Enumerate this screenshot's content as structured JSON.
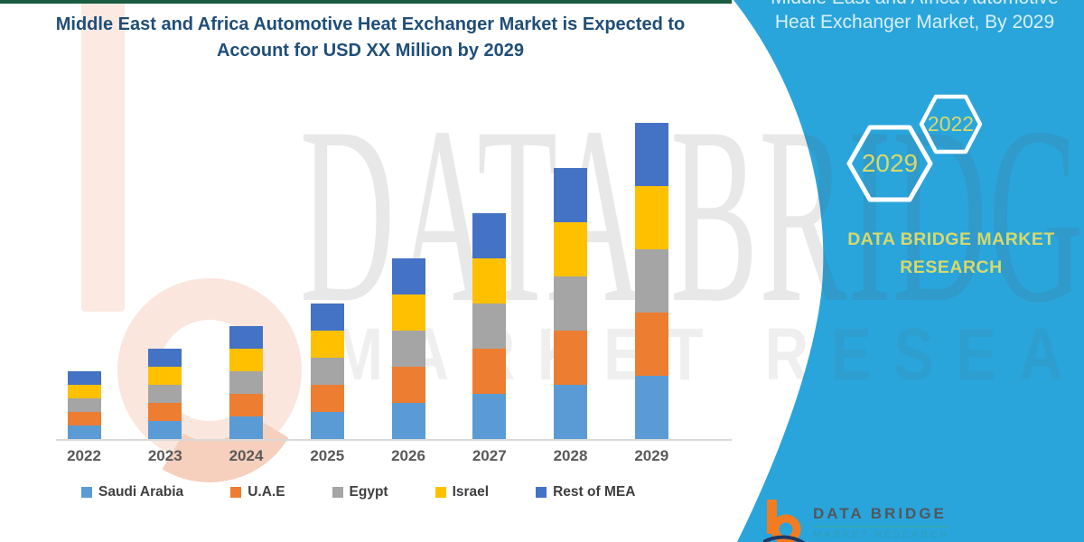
{
  "page": {
    "title": "Middle East and Africa Automotive Heat Exchanger Market is Expected to Account for USD XX Million by 2029"
  },
  "banner": {
    "heading_line1": "Middle East and Africa Automotive",
    "heading_line2": "Heat Exchanger Market, By 2029",
    "hexagon_labels": [
      "2029",
      "2022"
    ],
    "brand_line1": "DATA BRIDGE MARKET",
    "brand_line2": "RESEARCH",
    "background_color": "#29A5DC",
    "accent_yellow": "#D8D96A"
  },
  "footer_logo": {
    "name": "DATA BRIDGE",
    "subtitle": "MARKET RESEARCH"
  },
  "watermark": {
    "big_text": "DATA BRIDGE",
    "spaced_text": "MARKET RESEARCH"
  },
  "chart_data": {
    "type": "bar",
    "stacked": true,
    "title": "Middle East and Africa Automotive Heat Exchanger Market is Expected to Account for USD XX Million by 2029",
    "categories": [
      "2022",
      "2023",
      "2024",
      "2025",
      "2026",
      "2027",
      "2028",
      "2029"
    ],
    "series": [
      {
        "name": "Saudi Arabia",
        "color": "#5B9BD5",
        "values": [
          15,
          20,
          25,
          30,
          40,
          50,
          60,
          70
        ]
      },
      {
        "name": "U.A.E",
        "color": "#ED7D31",
        "values": [
          15,
          20,
          25,
          30,
          40,
          50,
          60,
          70
        ]
      },
      {
        "name": "Egypt",
        "color": "#A5A5A5",
        "values": [
          15,
          20,
          25,
          30,
          40,
          50,
          60,
          70
        ]
      },
      {
        "name": "Israel",
        "color": "#FFC000",
        "values": [
          15,
          20,
          25,
          30,
          40,
          50,
          60,
          70
        ]
      },
      {
        "name": "Rest of MEA",
        "color": "#4472C4",
        "values": [
          15,
          20,
          25,
          30,
          40,
          50,
          60,
          70
        ]
      }
    ],
    "stack_totals": [
      75,
      100,
      125,
      150,
      200,
      250,
      300,
      350
    ],
    "value_axis": {
      "visible": false,
      "note": "no y-axis labels shown; heights are relative units (USD XX Million placeholder)"
    },
    "xlabel": "",
    "ylabel": "",
    "grid": false,
    "legend_position": "bottom"
  }
}
